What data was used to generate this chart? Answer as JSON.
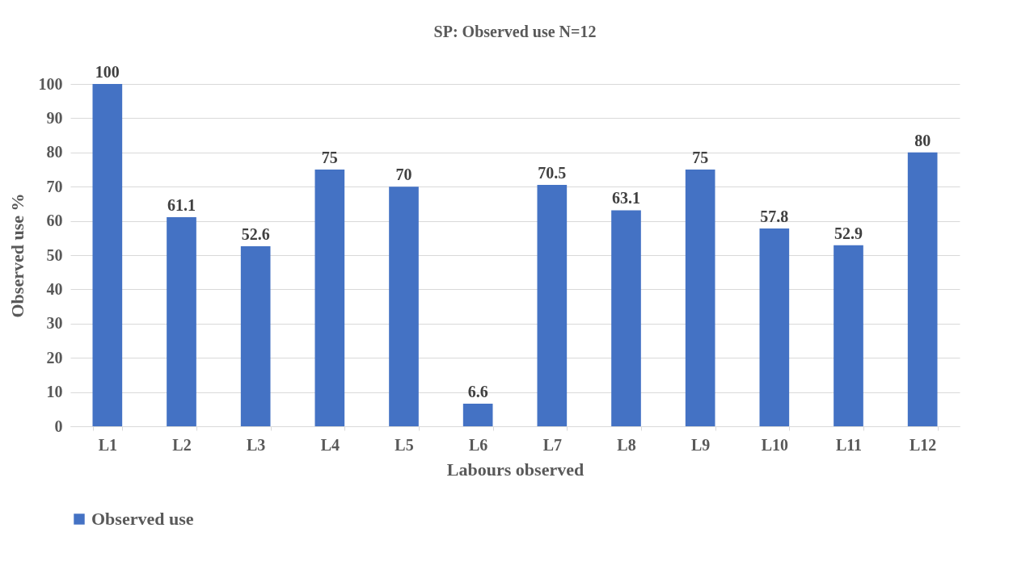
{
  "chart_data": {
    "type": "bar",
    "title": "SP: Observed use N=12",
    "xlabel": "Labours observed",
    "ylabel": "Observed use %",
    "categories": [
      "L1",
      "L2",
      "L3",
      "L4",
      "L5",
      "L6",
      "L7",
      "L8",
      "L9",
      "L10",
      "L11",
      "L12"
    ],
    "series": [
      {
        "name": "Observed use",
        "color": "#4472c4",
        "values": [
          100,
          61.1,
          52.6,
          75,
          70,
          6.6,
          70.5,
          63.1,
          75,
          57.8,
          52.9,
          80
        ]
      }
    ],
    "ylim": [
      0,
      100
    ],
    "yticks": [
      0,
      10,
      20,
      30,
      40,
      50,
      60,
      70,
      80,
      90,
      100
    ],
    "grid": "y",
    "legend": "bottom",
    "data_labels": true
  }
}
